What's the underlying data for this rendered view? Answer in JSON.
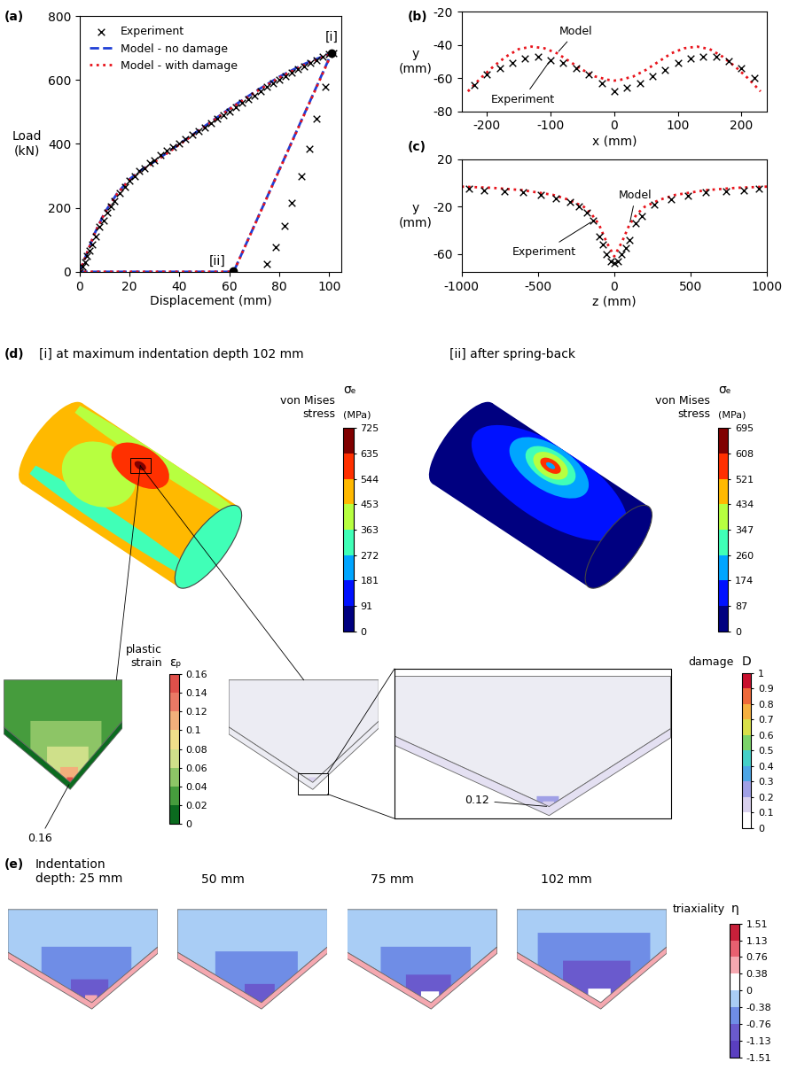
{
  "chart_data": [
    {
      "type": "line",
      "panel": "(a)",
      "xlabel": "Displacement (mm)",
      "ylabel": "Load\n(kN)",
      "xlim": [
        0,
        105
      ],
      "ylim": [
        0,
        800
      ],
      "xticks": [
        0,
        20,
        40,
        60,
        80,
        100
      ],
      "yticks": [
        0,
        200,
        400,
        600,
        800
      ],
      "legend": "upper left",
      "series": [
        {
          "name": "Experiment",
          "type": "scatter",
          "color": "#000000",
          "marker": "x",
          "x": [
            0,
            1,
            2,
            3,
            4,
            5,
            6.5,
            8,
            9.5,
            11,
            12.5,
            14,
            16,
            18,
            20,
            22,
            24,
            26,
            28,
            30,
            32.5,
            35,
            37.5,
            40,
            42.5,
            45,
            47.5,
            50,
            52.5,
            55,
            57.5,
            60,
            62.5,
            65,
            67.5,
            70,
            72.5,
            75,
            77.5,
            80,
            82.5,
            85,
            87.5,
            90,
            92.5,
            95,
            97.5,
            100,
            101.5,
            98.5,
            95,
            92,
            89,
            85,
            82,
            78.5,
            75
          ],
          "values": [
            0,
            15,
            30,
            50,
            65,
            85,
            110,
            140,
            160,
            185,
            205,
            220,
            245,
            265,
            285,
            300,
            315,
            325,
            340,
            350,
            365,
            378,
            390,
            402,
            415,
            428,
            440,
            452,
            465,
            478,
            490,
            502,
            515,
            528,
            540,
            552,
            565,
            578,
            590,
            602,
            612,
            622,
            633,
            643,
            653,
            662,
            672,
            680,
            685,
            580,
            478,
            385,
            298,
            215,
            143,
            78,
            25
          ]
        },
        {
          "name": "Model - no damage",
          "type": "line",
          "color": "#1f3fd6",
          "line_style": "dashed",
          "x": [
            0,
            3,
            6,
            10,
            15,
            20,
            25,
            30,
            40,
            50,
            60,
            70,
            80,
            90,
            101,
            62,
            61,
            0
          ],
          "values": [
            0,
            60,
            120,
            185,
            245,
            290,
            320,
            345,
            400,
            455,
            510,
            562,
            610,
            650,
            685,
            5,
            0,
            0
          ]
        },
        {
          "name": "Model - with damage",
          "type": "line",
          "color": "#e8141c",
          "line_style": "dotted",
          "x": [
            0,
            3,
            6,
            10,
            15,
            20,
            25,
            30,
            40,
            50,
            60,
            70,
            80,
            90,
            101,
            62,
            61,
            0
          ],
          "values": [
            0,
            60,
            120,
            183,
            243,
            288,
            318,
            343,
            398,
            453,
            508,
            560,
            607,
            647,
            683,
            5,
            0,
            0
          ]
        }
      ],
      "points": [
        {
          "label": "[i]",
          "x": 101,
          "y": 683
        },
        {
          "label": "[ii]",
          "x": 61.5,
          "y": 3
        }
      ]
    },
    {
      "type": "line",
      "panel": "(b)",
      "xlabel": "x (mm)",
      "ylabel": "y\n(mm)",
      "xlim": [
        -240,
        240
      ],
      "ylim": [
        -80,
        -20
      ],
      "xticks": [
        -200,
        -100,
        0,
        100,
        200
      ],
      "yticks": [
        -80,
        -60,
        -40,
        -20
      ],
      "series": [
        {
          "name": "Experiment",
          "type": "scatter",
          "color": "#000000",
          "marker": "x",
          "x": [
            -220,
            -200,
            -180,
            -160,
            -140,
            -120,
            -100,
            -80,
            -60,
            -40,
            -20,
            0,
            20,
            40,
            60,
            80,
            100,
            120,
            140,
            160,
            180,
            200,
            220
          ],
          "values": [
            -64,
            -58,
            -54,
            -51,
            -48,
            -47,
            -49,
            -51,
            -54,
            -58,
            -63,
            -68,
            -66,
            -63,
            -59,
            -55,
            -51,
            -48,
            -47,
            -47,
            -50,
            -54,
            -60
          ]
        },
        {
          "name": "Model",
          "type": "line",
          "color": "#e8141c",
          "line_style": "dotted",
          "x": [
            -230,
            -210,
            -190,
            -170,
            -150,
            -130,
            -110,
            -90,
            -70,
            -50,
            -30,
            -10,
            0,
            10,
            30,
            50,
            70,
            90,
            110,
            130,
            150,
            170,
            190,
            210,
            230
          ],
          "values": [
            -68,
            -60,
            -53,
            -47,
            -42.5,
            -41,
            -42,
            -45,
            -50,
            -55,
            -59,
            -61,
            -61.5,
            -61,
            -59,
            -55,
            -50,
            -45,
            -42,
            -41,
            -42.5,
            -47,
            -53,
            -60,
            -68
          ]
        }
      ]
    },
    {
      "type": "line",
      "panel": "(c)",
      "xlabel": "z (mm)",
      "ylabel": "y\n(mm)",
      "xlim": [
        -1000,
        1000
      ],
      "ylim": [
        -75,
        20
      ],
      "xticks": [
        -1000,
        -500,
        0,
        500,
        1000
      ],
      "yticks": [
        -60,
        -20,
        20
      ],
      "series": [
        {
          "name": "Experiment",
          "type": "scatter",
          "color": "#000000",
          "marker": "x",
          "x": [
            -950,
            -850,
            -720,
            -600,
            -480,
            -380,
            -290,
            -230,
            -180,
            -140,
            -100,
            -75,
            -50,
            -25,
            0,
            25,
            50,
            75,
            100,
            140,
            180,
            260,
            370,
            480,
            600,
            730,
            850,
            950
          ],
          "values": [
            -5,
            -6,
            -7,
            -8,
            -10,
            -13,
            -16,
            -20,
            -25,
            -32,
            -45,
            -52,
            -60,
            -66,
            -68,
            -66,
            -60,
            -55,
            -48,
            -34,
            -28,
            -18,
            -14,
            -11,
            -8,
            -7,
            -6,
            -5
          ]
        },
        {
          "name": "Model",
          "type": "line",
          "color": "#e8141c",
          "line_style": "dotted",
          "x": [
            -1000,
            -800,
            -600,
            -400,
            -300,
            -200,
            -150,
            -100,
            -50,
            0,
            50,
            100,
            150,
            200,
            300,
            400,
            600,
            800,
            1000
          ],
          "values": [
            -3,
            -4,
            -6,
            -10,
            -14,
            -20,
            -26,
            -35,
            -50,
            -62,
            -50,
            -35,
            -26,
            -20,
            -14,
            -10,
            -6,
            -4,
            -3
          ]
        }
      ]
    }
  ],
  "diagram": {
    "label": "(d)",
    "states": [
      {
        "title": "[i] at maximum indentation depth 102 mm",
        "field": {
          "name": "von Mises\nstress",
          "symbol": "σₑ",
          "unit": "(MPa)",
          "ticks": [
            0,
            91,
            181,
            272,
            363,
            453,
            544,
            635,
            725
          ]
        }
      },
      {
        "title": "[ii] after spring-back",
        "field": {
          "name": "von Mises\nstress",
          "symbol": "σₑ",
          "unit": "(MPa)",
          "ticks": [
            0,
            87,
            174,
            260,
            347,
            434,
            521,
            608,
            695
          ]
        }
      }
    ],
    "plastic_strain": {
      "name": "plastic\nstrain",
      "symbol": "εₚ",
      "ticks": [
        0,
        0.02,
        0.04,
        0.06,
        0.08,
        0.1,
        0.12,
        0.14,
        0.16
      ],
      "max_label": 0.16
    },
    "damage": {
      "name": "damage",
      "symbol": "D",
      "ticks": [
        0,
        0.1,
        0.2,
        0.3,
        0.4,
        0.5,
        0.6,
        0.7,
        0.8,
        0.9,
        1
      ],
      "max_label": 0.12
    }
  },
  "triaxiality_panel": {
    "label": "(e)",
    "depths": [
      "Indentation\ndepth: 25 mm",
      "50 mm",
      "75 mm",
      "102 mm"
    ],
    "field": {
      "name": "triaxiality",
      "symbol": "η",
      "ticks": [
        -1.51,
        -1.13,
        -0.76,
        -0.38,
        0,
        0.38,
        0.76,
        1.13,
        1.51
      ]
    }
  }
}
